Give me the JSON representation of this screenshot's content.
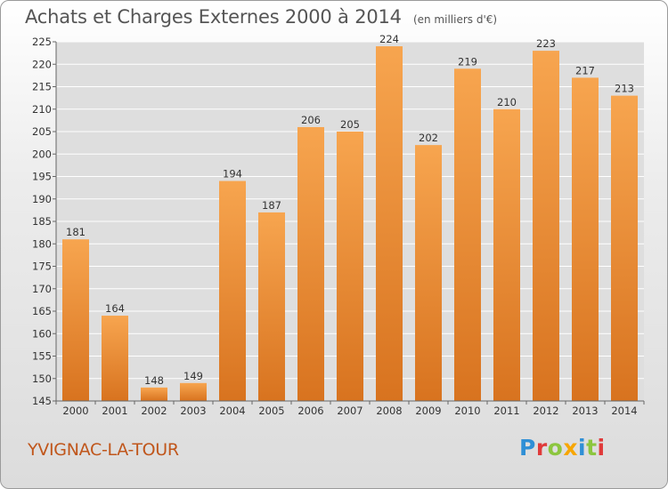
{
  "header": {
    "title": "Achats et Charges Externes 2000 à 2014",
    "unit": "(en milliers d'€)"
  },
  "footer": {
    "town": "YVIGNAC-LA-TOUR",
    "logo": {
      "letters": [
        "P",
        "r",
        "o",
        "x",
        "i",
        "t",
        "i"
      ],
      "colors": [
        "#2f8fd6",
        "#e03a3a",
        "#8cc63f",
        "#f7a600",
        "#2f8fd6",
        "#8cc63f",
        "#e03a3a"
      ]
    }
  },
  "chart_data": {
    "type": "bar",
    "title": "Achats et Charges Externes 2000 à 2014",
    "subtitle": "(en milliers d'€)",
    "xlabel": "",
    "ylabel": "",
    "categories": [
      "2000",
      "2001",
      "2002",
      "2003",
      "2004",
      "2005",
      "2006",
      "2007",
      "2008",
      "2009",
      "2010",
      "2011",
      "2012",
      "2013",
      "2014"
    ],
    "values": [
      181,
      164,
      148,
      149,
      194,
      187,
      206,
      205,
      224,
      202,
      219,
      210,
      223,
      217,
      213
    ],
    "ylim": [
      145,
      225
    ],
    "yticks": [
      145,
      150,
      155,
      160,
      165,
      170,
      175,
      180,
      185,
      190,
      195,
      200,
      205,
      210,
      215,
      220,
      225
    ],
    "grid": true,
    "bar_color_top": "#f7a54f",
    "bar_color_bottom": "#d8731f",
    "plot_background": "#dedede",
    "axis_color": "#666666"
  }
}
